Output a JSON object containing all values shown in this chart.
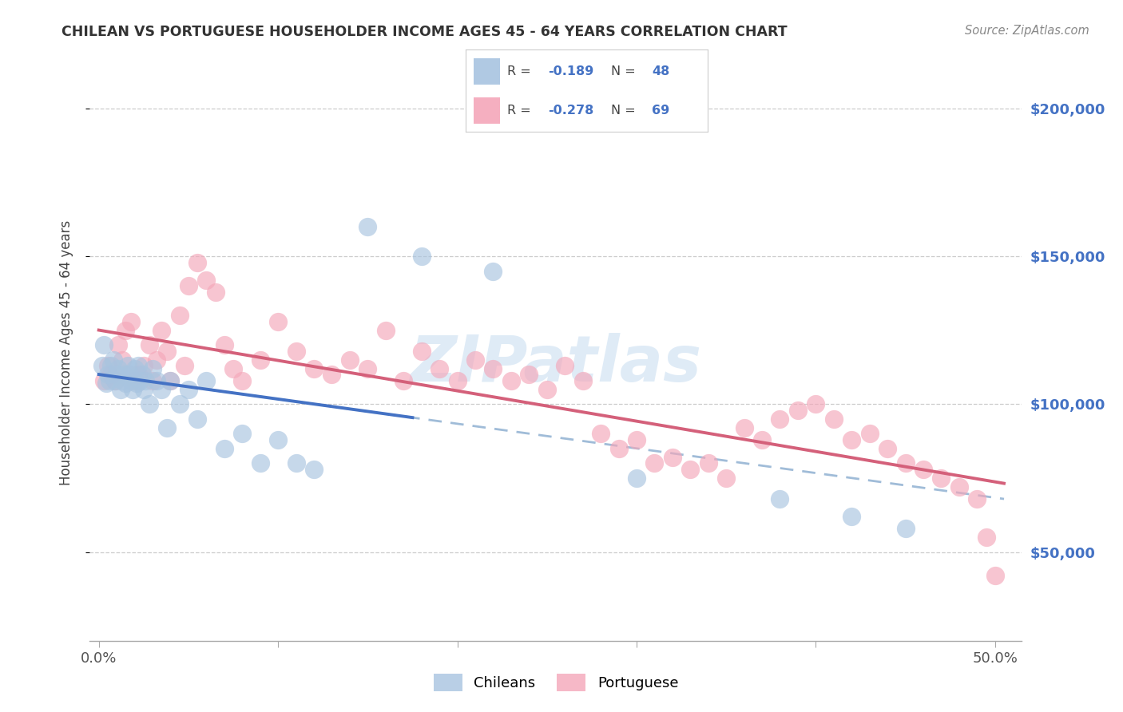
{
  "title": "CHILEAN VS PORTUGUESE HOUSEHOLDER INCOME AGES 45 - 64 YEARS CORRELATION CHART",
  "source": "Source: ZipAtlas.com",
  "ylabel": "Householder Income Ages 45 - 64 years",
  "xlim_min": -0.005,
  "xlim_max": 0.515,
  "ylim_min": 20000,
  "ylim_max": 215000,
  "ytick_values": [
    50000,
    100000,
    150000,
    200000
  ],
  "ytick_labels_right": [
    "$50,000",
    "$100,000",
    "$150,000",
    "$200,000"
  ],
  "xtick_values": [
    0.0,
    0.1,
    0.2,
    0.3,
    0.4,
    0.5
  ],
  "xtick_labels": [
    "0.0%",
    "",
    "",
    "",
    "",
    "50.0%"
  ],
  "chilean_color": "#a8c4e0",
  "portuguese_color": "#f4a7b9",
  "chilean_line_color": "#4472c4",
  "portuguese_line_color": "#d4607a",
  "dashed_line_color": "#a0bcd8",
  "N_chilean": 48,
  "N_portuguese": 69,
  "legend_chileans": "Chileans",
  "legend_portuguese": "Portuguese",
  "watermark": "ZIPatlas",
  "chilean_x": [
    0.002,
    0.003,
    0.004,
    0.005,
    0.006,
    0.007,
    0.008,
    0.009,
    0.01,
    0.011,
    0.012,
    0.013,
    0.014,
    0.015,
    0.016,
    0.017,
    0.018,
    0.019,
    0.02,
    0.021,
    0.022,
    0.023,
    0.024,
    0.025,
    0.026,
    0.028,
    0.03,
    0.032,
    0.035,
    0.038,
    0.04,
    0.045,
    0.05,
    0.055,
    0.06,
    0.07,
    0.08,
    0.09,
    0.1,
    0.11,
    0.12,
    0.15,
    0.18,
    0.22,
    0.3,
    0.38,
    0.42,
    0.45
  ],
  "chilean_y": [
    113000,
    120000,
    107000,
    110000,
    108000,
    113000,
    115000,
    108000,
    110000,
    112000,
    105000,
    108000,
    110000,
    107000,
    113000,
    110000,
    108000,
    105000,
    112000,
    107000,
    113000,
    108000,
    110000,
    105000,
    108000,
    100000,
    112000,
    108000,
    105000,
    92000,
    108000,
    100000,
    105000,
    95000,
    108000,
    85000,
    90000,
    80000,
    88000,
    80000,
    78000,
    160000,
    150000,
    145000,
    75000,
    68000,
    62000,
    58000
  ],
  "portuguese_x": [
    0.003,
    0.005,
    0.007,
    0.009,
    0.011,
    0.013,
    0.015,
    0.018,
    0.02,
    0.022,
    0.025,
    0.028,
    0.03,
    0.032,
    0.035,
    0.038,
    0.04,
    0.045,
    0.048,
    0.05,
    0.055,
    0.06,
    0.065,
    0.07,
    0.075,
    0.08,
    0.09,
    0.1,
    0.11,
    0.12,
    0.13,
    0.14,
    0.15,
    0.16,
    0.17,
    0.18,
    0.19,
    0.2,
    0.21,
    0.22,
    0.23,
    0.24,
    0.25,
    0.26,
    0.27,
    0.28,
    0.29,
    0.3,
    0.31,
    0.32,
    0.33,
    0.34,
    0.35,
    0.36,
    0.37,
    0.38,
    0.39,
    0.4,
    0.41,
    0.42,
    0.43,
    0.44,
    0.45,
    0.46,
    0.47,
    0.48,
    0.49,
    0.495,
    0.5
  ],
  "portuguese_y": [
    108000,
    113000,
    110000,
    108000,
    120000,
    115000,
    125000,
    128000,
    108000,
    110000,
    113000,
    120000,
    108000,
    115000,
    125000,
    118000,
    108000,
    130000,
    113000,
    140000,
    148000,
    142000,
    138000,
    120000,
    112000,
    108000,
    115000,
    128000,
    118000,
    112000,
    110000,
    115000,
    112000,
    125000,
    108000,
    118000,
    112000,
    108000,
    115000,
    112000,
    108000,
    110000,
    105000,
    113000,
    108000,
    90000,
    85000,
    88000,
    80000,
    82000,
    78000,
    80000,
    75000,
    92000,
    88000,
    95000,
    98000,
    100000,
    95000,
    88000,
    90000,
    85000,
    80000,
    78000,
    75000,
    72000,
    68000,
    55000,
    42000
  ]
}
